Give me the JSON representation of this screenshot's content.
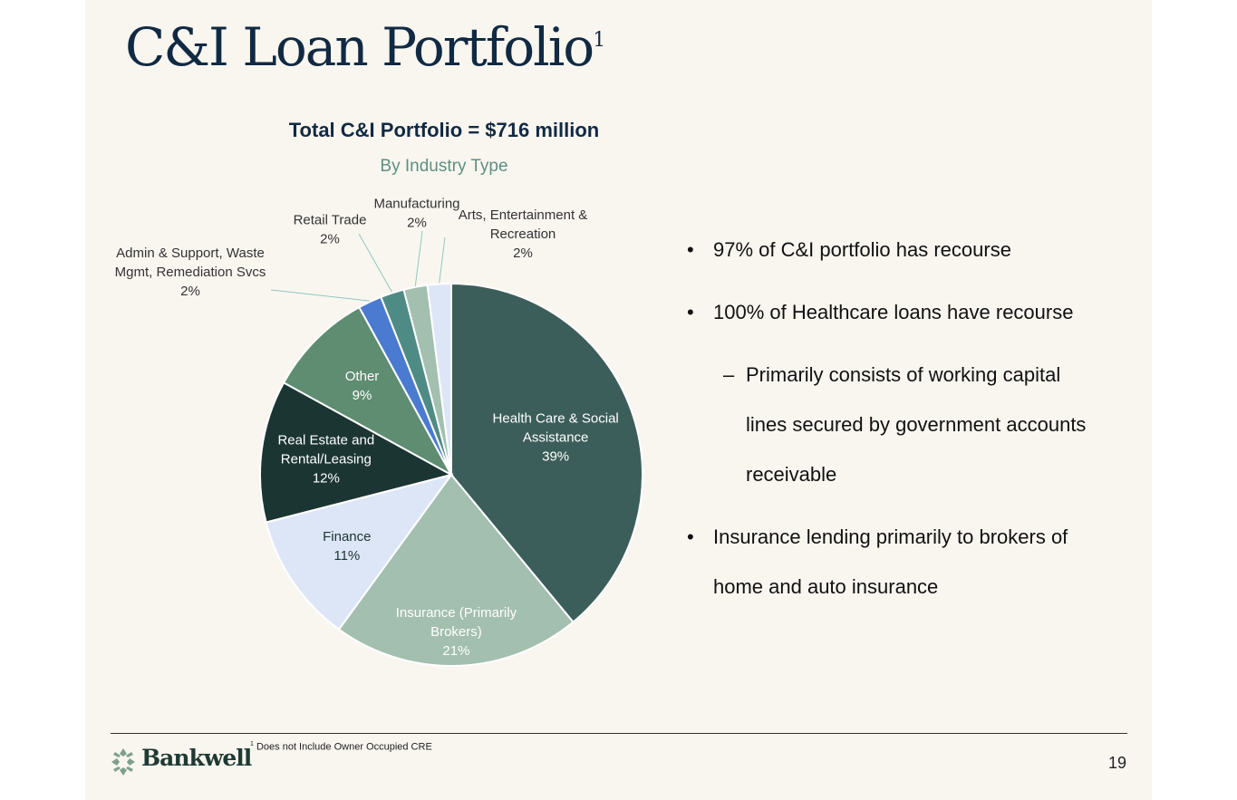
{
  "slide": {
    "title": "C&I Loan Portfolio",
    "title_superscript": "1",
    "footnote_mark": "1",
    "footnote": "Does not Include Owner Occupied CRE",
    "page_number": "19",
    "logo_text": "Bankwell"
  },
  "bullets": [
    "97% of C&I portfolio has recourse",
    "100% of Healthcare loans have recourse"
  ],
  "sub_bullet_lines": [
    "Primarily consists of working capital",
    "lines secured by government accounts",
    "receivable"
  ],
  "bullet_last": [
    "Insurance lending primarily to brokers of",
    "home and auto insurance"
  ],
  "bullet_mark": "•",
  "sub_mark": "–",
  "chart_data": {
    "type": "pie",
    "title": "Total C&I Portfolio = $716 million",
    "subtitle": "By Industry Type",
    "start": "12 o'clock, clockwise",
    "slices": [
      {
        "label": [
          "Health Care & Social",
          "Assistance"
        ],
        "value": 39,
        "pct": "39%",
        "color": "#3c5e5a"
      },
      {
        "label": [
          "Insurance (Primarily",
          "Brokers)"
        ],
        "value": 21,
        "pct": "21%",
        "color": "#a3bfaf"
      },
      {
        "label": [
          "Finance"
        ],
        "value": 11,
        "pct": "11%",
        "color": "#dde6f6"
      },
      {
        "label": [
          "Real Estate and",
          "Rental/Leasing"
        ],
        "value": 12,
        "pct": "12%",
        "color": "#1b3533"
      },
      {
        "label": [
          "Other"
        ],
        "value": 9,
        "pct": "9%",
        "color": "#5e8d72"
      },
      {
        "label": [
          "Admin & Support, Waste",
          "Mgmt, Remediation Svcs"
        ],
        "value": 2,
        "pct": "2%",
        "color": "#4a7bd0"
      },
      {
        "label": [
          "Retail Trade"
        ],
        "value": 2,
        "pct": "2%",
        "color": "#4f8b85"
      },
      {
        "label": [
          "Manufacturing"
        ],
        "value": 2,
        "pct": "2%",
        "color": "#a3bfaf"
      },
      {
        "label": [
          "Arts, Entertainment &",
          "Recreation"
        ],
        "value": 2,
        "pct": "2%",
        "color": "#dde6f6"
      }
    ]
  }
}
